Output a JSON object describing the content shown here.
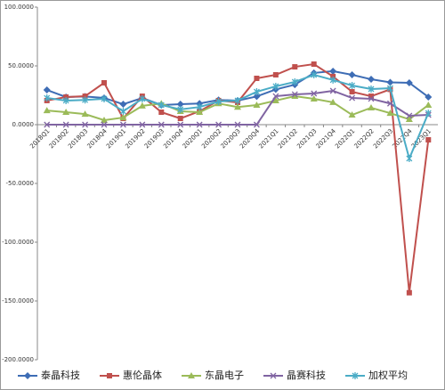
{
  "chart_data": {
    "type": "line",
    "categories": [
      "2018Q1",
      "2018Q2",
      "2018Q3",
      "2018Q4",
      "2019Q1",
      "2019Q2",
      "2019Q3",
      "2019Q4",
      "2020Q1",
      "2020Q2",
      "2020Q3",
      "2020Q4",
      "2021Q1",
      "2021Q2",
      "2021Q3",
      "2021Q4",
      "2022Q1",
      "2022Q2",
      "2022Q3",
      "2022Q4",
      "2023Q1"
    ],
    "series": [
      {
        "name": "泰晶科技",
        "color": "#3e6db5",
        "marker": "diamond",
        "values": [
          29.5,
          23.5,
          24,
          22.7,
          17.4,
          22.7,
          16.7,
          17.4,
          18,
          21,
          20.5,
          24,
          30,
          34,
          44,
          45.5,
          42.4,
          38.6,
          36,
          35.6,
          23.5
        ]
      },
      {
        "name": "惠伦晶体",
        "color": "#c0504d",
        "marker": "square",
        "values": [
          20.5,
          23.5,
          24.2,
          35.6,
          5.3,
          24.2,
          10.6,
          5.3,
          11.4,
          20.5,
          19,
          39.4,
          42.4,
          49.2,
          51.5,
          41,
          28,
          24.2,
          30,
          -143,
          -12.9
        ]
      },
      {
        "name": "东晶电子",
        "color": "#9bbb59",
        "marker": "triangle",
        "values": [
          12,
          10.6,
          9,
          3.8,
          6,
          16,
          18,
          11.4,
          10.6,
          18,
          15,
          16.7,
          20.5,
          24.2,
          22,
          19,
          8.3,
          14.4,
          9.8,
          4.5,
          16.7
        ]
      },
      {
        "name": "晶赛科技",
        "color": "#8064a2",
        "marker": "x",
        "values": [
          0,
          0,
          0,
          0,
          0,
          0,
          0,
          0,
          0,
          0,
          0,
          0,
          24.2,
          25.8,
          26.5,
          28.8,
          22.7,
          22,
          18,
          7.6,
          8.3
        ]
      },
      {
        "name": "加权平均",
        "color": "#4bacc6",
        "marker": "star",
        "values": [
          22.7,
          20.5,
          21,
          22,
          11.4,
          22,
          16.7,
          13,
          15,
          19.7,
          20.5,
          28,
          32.6,
          36.4,
          42.4,
          38,
          33.3,
          30.3,
          31,
          -28.8,
          9.8
        ]
      }
    ],
    "ylim": [
      -200,
      100
    ],
    "yticks": [
      {
        "value": -200,
        "label": "-200.0000"
      },
      {
        "value": -150,
        "label": "-150.0000"
      },
      {
        "value": -100,
        "label": "-100.0000"
      },
      {
        "value": -50,
        "label": "-50.0000"
      },
      {
        "value": 0,
        "label": "0.0000"
      },
      {
        "value": 50,
        "label": "50.0000"
      },
      {
        "value": 100,
        "label": "100.0000"
      }
    ],
    "grid": false,
    "legend": "bottom"
  }
}
